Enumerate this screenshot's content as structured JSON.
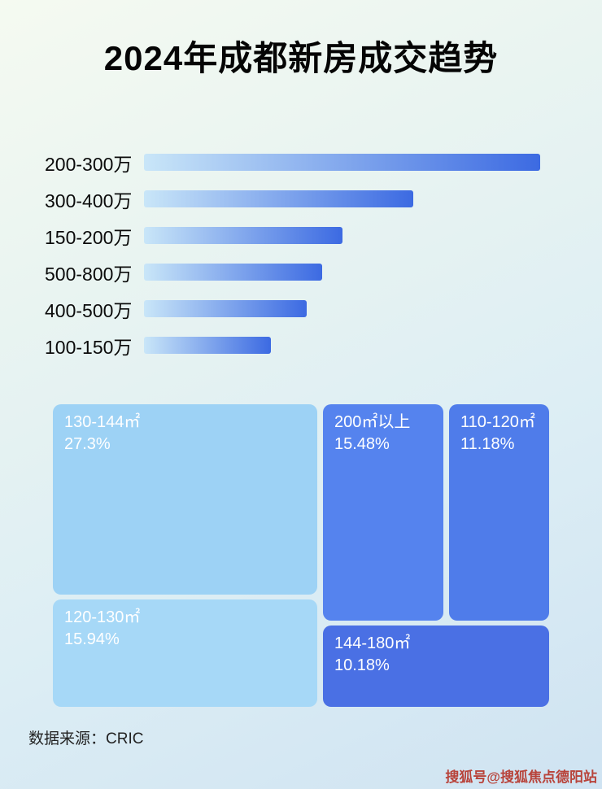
{
  "page": {
    "title": "2024年成都新房成交趋势",
    "source": "数据来源：CRIC",
    "watermark": "搜狐号@搜狐焦点德阳站"
  },
  "colors": {
    "bar_gradient_start": "#c9e6f8",
    "bar_gradient_end": "#3c6ae2",
    "background_start": "#f5faf1",
    "background_end": "#cfe3f2",
    "watermark_red": "#b8433a"
  },
  "chart_data": [
    {
      "type": "bar",
      "orientation": "horizontal",
      "title": "2024年成都新房成交趋势",
      "categories": [
        "200-300万",
        "300-400万",
        "150-200万",
        "500-800万",
        "400-500万",
        "100-150万"
      ],
      "values": [
        100,
        68,
        50,
        45,
        41,
        32
      ],
      "xlabel": "",
      "ylabel": "",
      "axis_labels_shown": false,
      "legend": "none",
      "grid": false
    },
    {
      "type": "treemap",
      "items": [
        {
          "label": "130-144㎡",
          "percent": "27.3%",
          "value": 27.3,
          "color": "#9dd2f5"
        },
        {
          "label": "120-130㎡",
          "percent": "15.94%",
          "value": 15.94,
          "color": "#a6d8f7"
        },
        {
          "label": "200㎡以上",
          "percent": "15.48%",
          "value": 15.48,
          "color": "#5583ee"
        },
        {
          "label": "110-120㎡",
          "percent": "11.18%",
          "value": 11.18,
          "color": "#4f7cea"
        },
        {
          "label": "144-180㎡",
          "percent": "10.18%",
          "value": 10.18,
          "color": "#4a70e4"
        }
      ]
    }
  ]
}
